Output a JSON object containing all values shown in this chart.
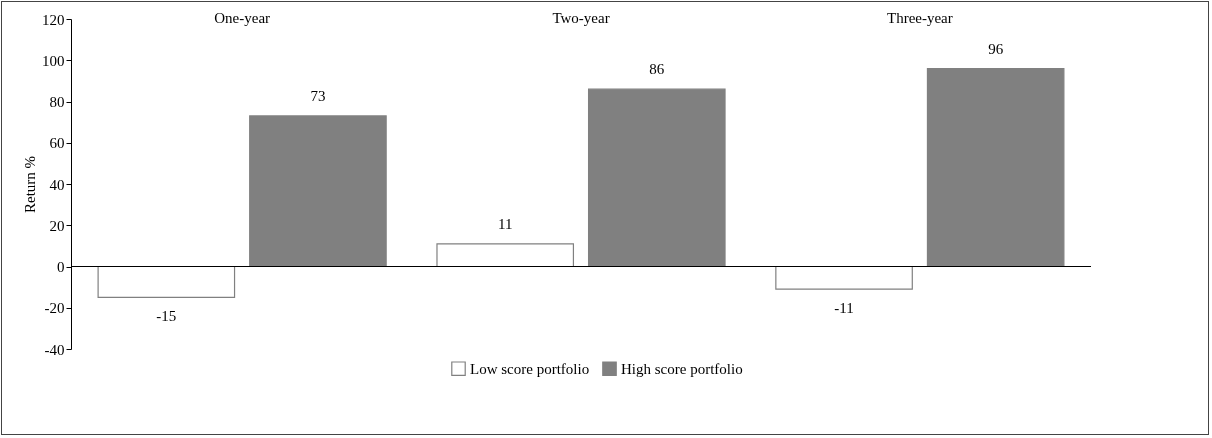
{
  "chart_data": {
    "type": "bar",
    "ylabel": "Return %",
    "categories": [
      "One-year",
      "Two-year",
      "Three-year"
    ],
    "series": [
      {
        "name": "Low score portfolio",
        "color": "#ffffff",
        "values": [
          -15,
          11,
          -11
        ]
      },
      {
        "name": "High score portfolio",
        "color": "#808080",
        "values": [
          73,
          86,
          96
        ]
      }
    ],
    "ylim": [
      -40,
      120
    ],
    "yticks": [
      -40,
      -20,
      0,
      20,
      40,
      60,
      80,
      100,
      120
    ],
    "data_labels": true,
    "legend": "bottom"
  }
}
